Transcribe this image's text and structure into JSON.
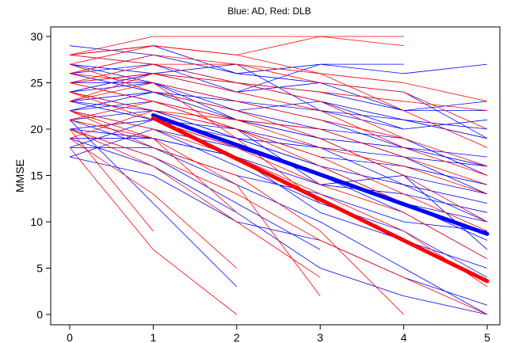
{
  "chart_data": {
    "type": "line",
    "title": "Blue: AD,    Red: DLB",
    "xlabel": "",
    "ylabel": "MMSE",
    "xlim": [
      0,
      5
    ],
    "ylim": [
      0,
      30
    ],
    "x_ticks": [
      0,
      1,
      2,
      3,
      4,
      5
    ],
    "y_ticks": [
      0,
      5,
      10,
      15,
      20,
      25,
      30
    ],
    "grid": false,
    "colors": {
      "AD": "#0000ff",
      "DLB": "#ff0000"
    },
    "series": [
      {
        "group": "AD",
        "x": [
          0,
          1
        ],
        "y": [
          29,
          28
        ]
      },
      {
        "group": "AD",
        "x": [
          0,
          1,
          2,
          3,
          4,
          5
        ],
        "y": [
          28,
          27,
          25,
          24,
          22,
          22
        ]
      },
      {
        "group": "AD",
        "x": [
          0,
          1,
          2,
          3,
          4,
          5
        ],
        "y": [
          28,
          29,
          26,
          27,
          26,
          27
        ]
      },
      {
        "group": "AD",
        "x": [
          0,
          1,
          2,
          3,
          4,
          5
        ],
        "y": [
          27,
          26,
          25,
          23,
          21,
          19
        ]
      },
      {
        "group": "AD",
        "x": [
          0,
          1,
          2,
          3,
          4
        ],
        "y": [
          26,
          27,
          24,
          27,
          27
        ]
      },
      {
        "group": "AD",
        "x": [
          0,
          1,
          2,
          3,
          4,
          5
        ],
        "y": [
          26,
          24,
          23,
          21,
          18,
          16
        ]
      },
      {
        "group": "AD",
        "x": [
          0,
          1,
          2,
          3,
          4,
          5
        ],
        "y": [
          25,
          25,
          22,
          20,
          17,
          13
        ]
      },
      {
        "group": "AD",
        "x": [
          0,
          1,
          2,
          3,
          4,
          5
        ],
        "y": [
          25,
          23,
          20,
          18,
          14,
          10
        ]
      },
      {
        "group": "AD",
        "x": [
          0,
          1,
          2,
          3,
          4,
          5
        ],
        "y": [
          24,
          25,
          23,
          22,
          21,
          20
        ]
      },
      {
        "group": "AD",
        "x": [
          0,
          1,
          2,
          3,
          4,
          5
        ],
        "y": [
          24,
          22,
          19,
          16,
          12,
          8
        ]
      },
      {
        "group": "AD",
        "x": [
          0,
          1,
          2,
          3,
          4,
          5
        ],
        "y": [
          23,
          24,
          22,
          23,
          20,
          21
        ]
      },
      {
        "group": "AD",
        "x": [
          0,
          1,
          2,
          3,
          4,
          5
        ],
        "y": [
          23,
          21,
          18,
          15,
          11,
          6
        ]
      },
      {
        "group": "AD",
        "x": [
          0,
          1,
          2,
          3,
          4,
          5
        ],
        "y": [
          22,
          23,
          21,
          19,
          18,
          17
        ]
      },
      {
        "group": "AD",
        "x": [
          0,
          1,
          2,
          3,
          4,
          5
        ],
        "y": [
          22,
          20,
          16,
          12,
          9,
          4
        ]
      },
      {
        "group": "AD",
        "x": [
          0,
          1,
          2,
          3,
          4,
          5
        ],
        "y": [
          21,
          22,
          20,
          17,
          16,
          14
        ]
      },
      {
        "group": "AD",
        "x": [
          0,
          1,
          2,
          3,
          4,
          5
        ],
        "y": [
          21,
          18,
          14,
          10,
          5,
          0
        ]
      },
      {
        "group": "AD",
        "x": [
          0,
          1,
          2,
          3,
          4,
          5
        ],
        "y": [
          20,
          21,
          19,
          16,
          14,
          12
        ]
      },
      {
        "group": "AD",
        "x": [
          0,
          1,
          2,
          3
        ],
        "y": [
          20,
          17,
          12,
          7
        ]
      },
      {
        "group": "AD",
        "x": [
          0,
          1,
          2,
          3,
          4,
          5
        ],
        "y": [
          19,
          19,
          17,
          14,
          13,
          11
        ]
      },
      {
        "group": "AD",
        "x": [
          0,
          1,
          2,
          3,
          4,
          5
        ],
        "y": [
          19,
          16,
          11,
          5,
          2,
          0
        ]
      },
      {
        "group": "AD",
        "x": [
          0,
          1,
          2,
          3,
          4,
          5
        ],
        "y": [
          18,
          18,
          15,
          13,
          10,
          9
        ]
      },
      {
        "group": "AD",
        "x": [
          0,
          1,
          2,
          3,
          4,
          5
        ],
        "y": [
          17,
          15,
          10,
          8,
          4,
          1
        ]
      },
      {
        "group": "AD",
        "x": [
          0,
          1,
          2,
          3,
          4,
          5
        ],
        "y": [
          17,
          20,
          18,
          15,
          12,
          10
        ]
      },
      {
        "group": "AD",
        "x": [
          0,
          1,
          2,
          3,
          4,
          5
        ],
        "y": [
          24,
          26,
          24,
          25,
          22,
          23
        ]
      },
      {
        "group": "AD",
        "x": [
          0,
          1,
          2,
          3,
          4,
          5
        ],
        "y": [
          26,
          28,
          26,
          25,
          24,
          19
        ]
      },
      {
        "group": "AD",
        "x": [
          0,
          1,
          2,
          3,
          4,
          5
        ],
        "y": [
          22,
          24,
          21,
          20,
          19,
          15
        ]
      },
      {
        "group": "AD",
        "x": [
          0,
          1,
          2,
          3,
          4,
          5
        ],
        "y": [
          20,
          19,
          17,
          11,
          8,
          5
        ]
      },
      {
        "group": "AD",
        "x": [
          0,
          1,
          2,
          3,
          4,
          5
        ],
        "y": [
          23,
          22,
          19,
          18,
          17,
          16
        ]
      },
      {
        "group": "AD",
        "x": [
          0,
          1,
          2
        ],
        "y": [
          21,
          12,
          3
        ]
      },
      {
        "group": "AD",
        "x": [
          0,
          1,
          2,
          3,
          4,
          5
        ],
        "y": [
          18,
          21,
          20,
          14,
          15,
          13
        ]
      },
      {
        "group": "AD",
        "x": [
          0,
          1,
          2,
          3,
          4,
          5
        ],
        "y": [
          27,
          25,
          21,
          19,
          15,
          7
        ]
      },
      {
        "group": "AD",
        "x": [
          0,
          1,
          2,
          3,
          4
        ],
        "y": [
          25,
          26,
          27,
          22,
          20
        ]
      },
      {
        "group": "DLB",
        "x": [
          0,
          1,
          2,
          3,
          4
        ],
        "y": [
          28,
          30,
          30,
          30,
          30
        ]
      },
      {
        "group": "DLB",
        "x": [
          0,
          1,
          2,
          3,
          4
        ],
        "y": [
          27,
          29,
          28,
          30,
          29
        ]
      },
      {
        "group": "DLB",
        "x": [
          0,
          1,
          2,
          3,
          4,
          5
        ],
        "y": [
          28,
          27,
          27,
          26,
          25,
          23
        ]
      },
      {
        "group": "DLB",
        "x": [
          0,
          1,
          2,
          3,
          4,
          5
        ],
        "y": [
          26,
          28,
          27,
          25,
          24,
          20
        ]
      },
      {
        "group": "DLB",
        "x": [
          0,
          1,
          2,
          3,
          4,
          5
        ],
        "y": [
          25,
          26,
          24,
          22,
          18,
          15
        ]
      },
      {
        "group": "DLB",
        "x": [
          0,
          1,
          2,
          3,
          4
        ],
        "y": [
          24,
          22,
          20,
          16,
          12
        ]
      },
      {
        "group": "DLB",
        "x": [
          0,
          1,
          2,
          3,
          4,
          5
        ],
        "y": [
          23,
          25,
          23,
          21,
          19,
          16
        ]
      },
      {
        "group": "DLB",
        "x": [
          0,
          1,
          2,
          3,
          4,
          5
        ],
        "y": [
          22,
          20,
          17,
          13,
          9,
          3
        ]
      },
      {
        "group": "DLB",
        "x": [
          0,
          1,
          2,
          3,
          4,
          5
        ],
        "y": [
          21,
          23,
          21,
          20,
          17,
          14
        ]
      },
      {
        "group": "DLB",
        "x": [
          0,
          1,
          2,
          3
        ],
        "y": [
          20,
          16,
          10,
          4
        ]
      },
      {
        "group": "DLB",
        "x": [
          0,
          1,
          2
        ],
        "y": [
          19,
          13,
          5
        ]
      },
      {
        "group": "DLB",
        "x": [
          0,
          1,
          2
        ],
        "y": [
          18,
          7,
          0
        ]
      },
      {
        "group": "DLB",
        "x": [
          0,
          1
        ],
        "y": [
          20,
          9
        ]
      },
      {
        "group": "DLB",
        "x": [
          0,
          1,
          2,
          3,
          4
        ],
        "y": [
          25,
          27,
          25,
          23,
          19
        ]
      },
      {
        "group": "DLB",
        "x": [
          0,
          1,
          2,
          3,
          4,
          5
        ],
        "y": [
          27,
          24,
          22,
          19,
          15,
          10
        ]
      },
      {
        "group": "DLB",
        "x": [
          0,
          1,
          2,
          3,
          4,
          5
        ],
        "y": [
          24,
          21,
          18,
          14,
          11,
          6
        ]
      },
      {
        "group": "DLB",
        "x": [
          0,
          1,
          2,
          3,
          4
        ],
        "y": [
          22,
          18,
          15,
          9,
          0
        ]
      },
      {
        "group": "DLB",
        "x": [
          0,
          1,
          2,
          3
        ],
        "y": [
          26,
          25,
          19,
          12
        ]
      },
      {
        "group": "DLB",
        "x": [
          0,
          1,
          2
        ],
        "y": [
          21,
          19,
          11
        ]
      },
      {
        "group": "DLB",
        "x": [
          0,
          1,
          2,
          3,
          4,
          5
        ],
        "y": [
          23,
          26,
          25,
          24,
          23,
          22
        ]
      },
      {
        "group": "DLB",
        "x": [
          0,
          1,
          2,
          3,
          4,
          5
        ],
        "y": [
          19,
          22,
          21,
          18,
          16,
          13
        ]
      },
      {
        "group": "DLB",
        "x": [
          0,
          1,
          2,
          3,
          4,
          5
        ],
        "y": [
          28,
          29,
          28,
          26,
          22,
          18
        ]
      },
      {
        "group": "DLB",
        "x": [
          0,
          1,
          2,
          3,
          4,
          5
        ],
        "y": [
          20,
          17,
          13,
          8,
          4,
          0
        ]
      },
      {
        "group": "DLB",
        "x": [
          0,
          1,
          2,
          3,
          4,
          5
        ],
        "y": [
          25,
          23,
          20,
          17,
          13,
          9
        ]
      },
      {
        "group": "DLB",
        "x": [
          0,
          1,
          2,
          3
        ],
        "y": [
          22,
          19,
          14,
          2
        ]
      }
    ],
    "fits": [
      {
        "group": "AD",
        "x": [
          1,
          5
        ],
        "y": [
          21.5,
          8.7
        ]
      },
      {
        "group": "DLB",
        "x": [
          1,
          5
        ],
        "y": [
          21.2,
          3.6
        ]
      }
    ]
  }
}
